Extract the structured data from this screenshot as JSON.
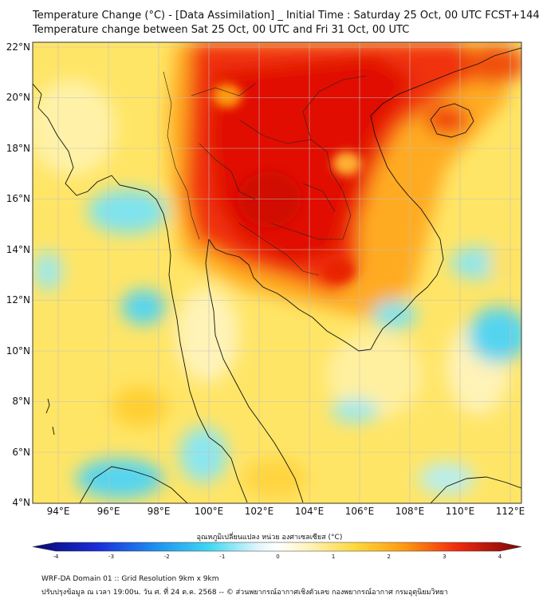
{
  "title_line1": "Temperature Change (°C) - [Data Assimilation] _ Initial Time : Saturday 25 Oct, 00 UTC FCST+144",
  "title_line2": "Temperature change between Sat 25 Oct, 00 UTC and Fri 31 Oct, 00 UTC",
  "axes": {
    "lat_labels": [
      "22°N",
      "20°N",
      "18°N",
      "16°N",
      "14°N",
      "12°N",
      "10°N",
      "8°N",
      "6°N",
      "4°N"
    ],
    "lon_labels": [
      "94°E",
      "96°E",
      "98°E",
      "100°E",
      "102°E",
      "104°E",
      "106°E",
      "108°E",
      "110°E",
      "112°E"
    ],
    "lat_range": [
      4,
      22.2
    ],
    "lon_range": [
      93,
      112.5
    ]
  },
  "colorbar": {
    "title": "อุณหภูมิเปลี่ยนแปลง หน่วย องศาเซลเซียส (°C)",
    "ticks": [
      "-4",
      "-3",
      "-2",
      "-1",
      "0",
      "1",
      "2",
      "3",
      "4"
    ],
    "range": [
      -4,
      4
    ]
  },
  "footer": {
    "line1": "WRF-DA Domain 01 :: Grid Resolution 9km x 9km",
    "line2": "ปรับปรุงข้อมูล ณ เวลา 19:00น. วัน ศ. ที่ 24 ต.ค. 2568 -- © ส่วนพยากรณ์อากาศเชิงตัวเลข กองพยากรณ์อากาศ กรมอุตุนิยมวิทยา"
  },
  "colors": {
    "hot": "#e01000",
    "warm": "#ff8c00",
    "mild": "#ffd23a",
    "neutral": "#fff6c8",
    "cool": "#7fe3ee",
    "cold": "#35c9f0"
  }
}
